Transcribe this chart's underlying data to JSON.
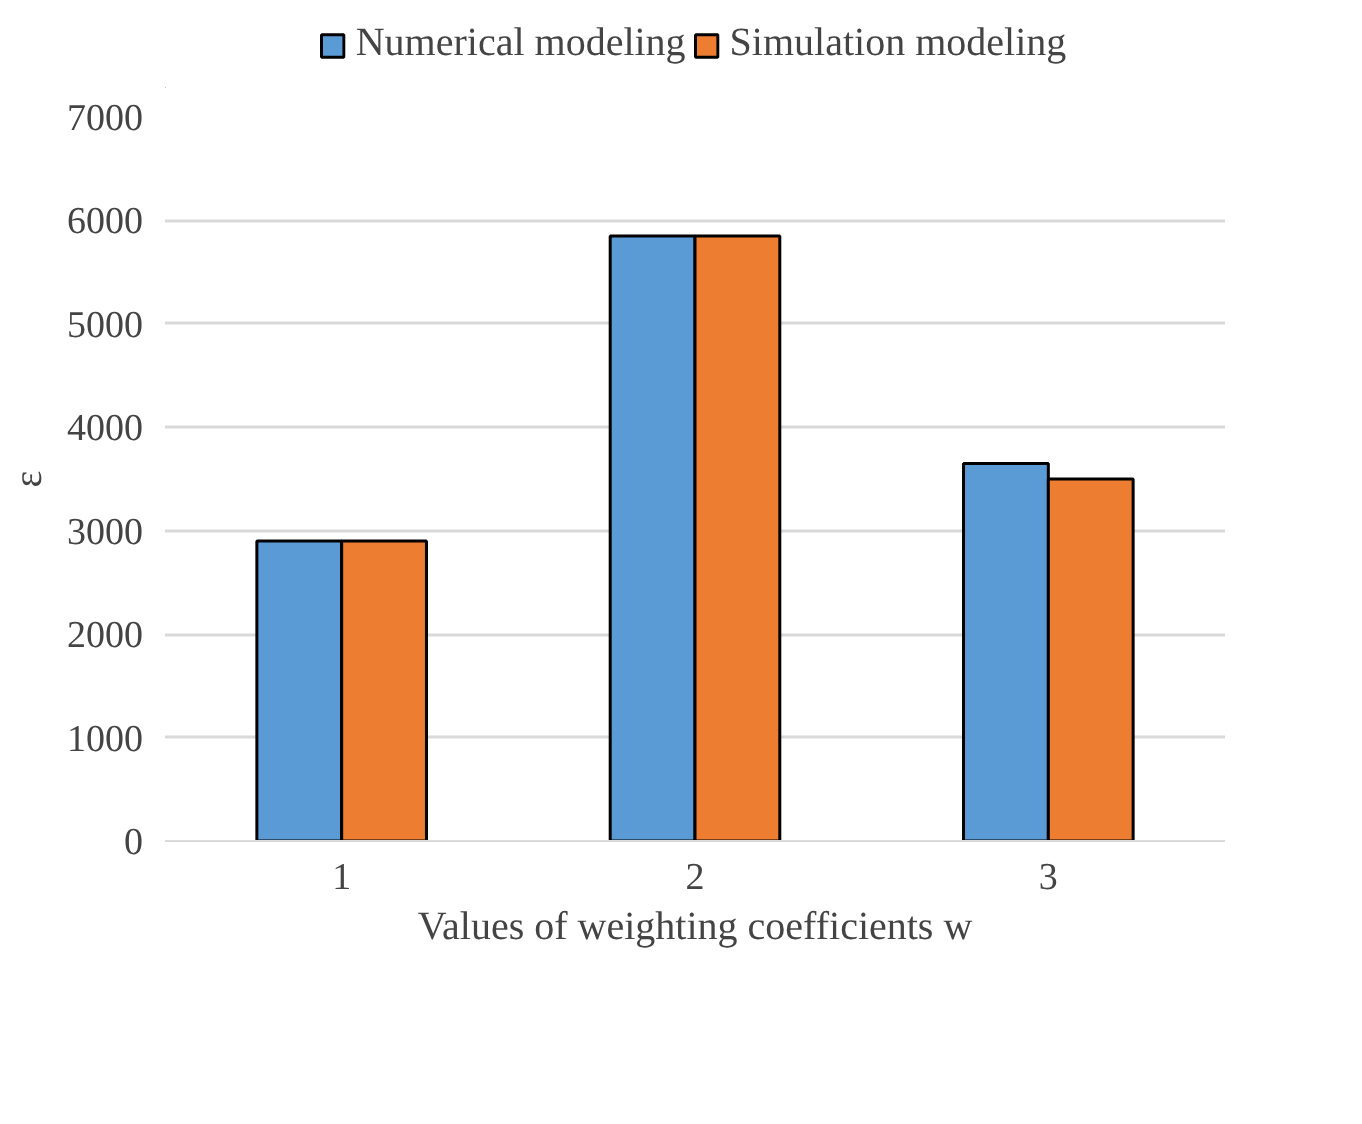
{
  "chart_data": {
    "type": "bar",
    "categories": [
      "1",
      "2",
      "3"
    ],
    "series": [
      {
        "name": "Numerical modeling",
        "color": "#5b9bd5",
        "values": [
          2900,
          5850,
          3650
        ]
      },
      {
        "name": "Simulation modeling",
        "color": "#ed7d31",
        "values": [
          2900,
          5850,
          3500
        ]
      }
    ],
    "xlabel": "Values of weighting coefficients w",
    "ylabel": "ε",
    "ylim": [
      0,
      7000
    ],
    "yticks": [
      0,
      1000,
      2000,
      3000,
      4000,
      5000,
      6000,
      7000
    ],
    "grid": "y",
    "legend": "top"
  }
}
